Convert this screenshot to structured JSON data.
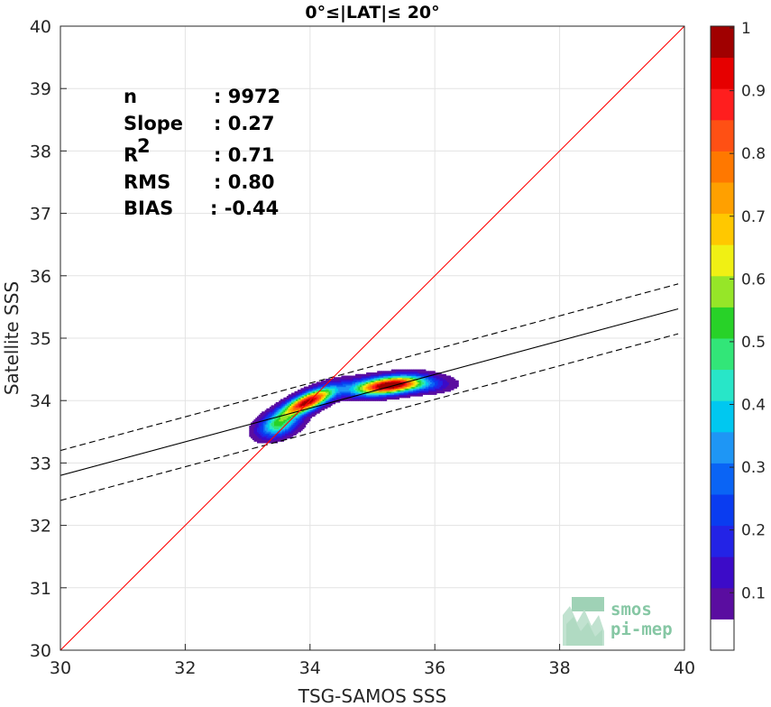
{
  "chart_data": {
    "type": "heatmap",
    "title": "0°≤|LAT|≤ 20°",
    "xlabel": "TSG-SAMOS SSS",
    "ylabel": "Satellite SSS",
    "xlim": [
      30,
      40
    ],
    "ylim": [
      30,
      40
    ],
    "xticks": [
      "30",
      "32",
      "34",
      "36",
      "38",
      "40"
    ],
    "yticks": [
      "30",
      "31",
      "32",
      "33",
      "34",
      "35",
      "36",
      "37",
      "38",
      "39",
      "40"
    ],
    "grid": true,
    "stats": [
      {
        "label": "n",
        "value": ": 9972"
      },
      {
        "label": "Slope",
        "value": ": 0.27"
      },
      {
        "label": "R",
        "sup": "2",
        "value": ": 0.71"
      },
      {
        "label": "RMS",
        "value": ": 0.80"
      },
      {
        "label": "BIAS",
        "value": ": -0.44"
      }
    ],
    "identity_line": {
      "x": [
        30,
        40
      ],
      "y": [
        30,
        40
      ],
      "color": "#ff0000"
    },
    "regression_line": {
      "x": [
        30,
        39.9
      ],
      "y": [
        32.8,
        35.47
      ],
      "color": "#000000"
    },
    "regression_upper": {
      "x": [
        30,
        39.9
      ],
      "y": [
        33.2,
        35.87
      ],
      "color": "#000000",
      "style": "dashed"
    },
    "regression_lower": {
      "x": [
        30,
        39.9
      ],
      "y": [
        32.4,
        35.07
      ],
      "color": "#000000",
      "style": "dashed"
    },
    "density_peaks": [
      {
        "x": 33.97,
        "y": 33.99,
        "sx": 0.28,
        "sy": 0.15,
        "rho": 0.75,
        "amp": 1.0
      },
      {
        "x": 35.3,
        "y": 34.25,
        "sx": 0.3,
        "sy": 0.1,
        "rho": 0.4,
        "amp": 0.8
      },
      {
        "x": 33.5,
        "y": 33.62,
        "sx": 0.22,
        "sy": 0.14,
        "rho": 0.4,
        "amp": 0.48
      },
      {
        "x": 35.7,
        "y": 34.27,
        "sx": 0.35,
        "sy": 0.09,
        "rho": 0.0,
        "amp": 0.3
      },
      {
        "x": 34.9,
        "y": 34.22,
        "sx": 0.3,
        "sy": 0.1,
        "rho": 0.3,
        "amp": 0.35
      }
    ],
    "colorbar": {
      "ticks": [
        "0.1",
        "0.2",
        "0.3",
        "0.4",
        "0.5",
        "0.6",
        "0.7",
        "0.8",
        "0.9",
        "1"
      ],
      "tick_values": [
        0.1,
        0.2,
        0.3,
        0.4,
        0.5,
        0.6,
        0.7,
        0.8,
        0.9,
        1.0
      ],
      "range": [
        0,
        1
      ],
      "bottom_color": "#ffffff",
      "colors": [
        "#5a0da0",
        "#3c0bc8",
        "#2323e6",
        "#0a3cf0",
        "#0a64f5",
        "#1e96f5",
        "#00c8f0",
        "#28e6c8",
        "#32e678",
        "#28d228",
        "#96e628",
        "#f0f014",
        "#ffc800",
        "#ffa000",
        "#ff7800",
        "#ff5014",
        "#ff1e1e",
        "#e60000",
        "#a00000"
      ]
    }
  },
  "logo": {
    "line1": "smos",
    "line2": "pi-mep"
  }
}
